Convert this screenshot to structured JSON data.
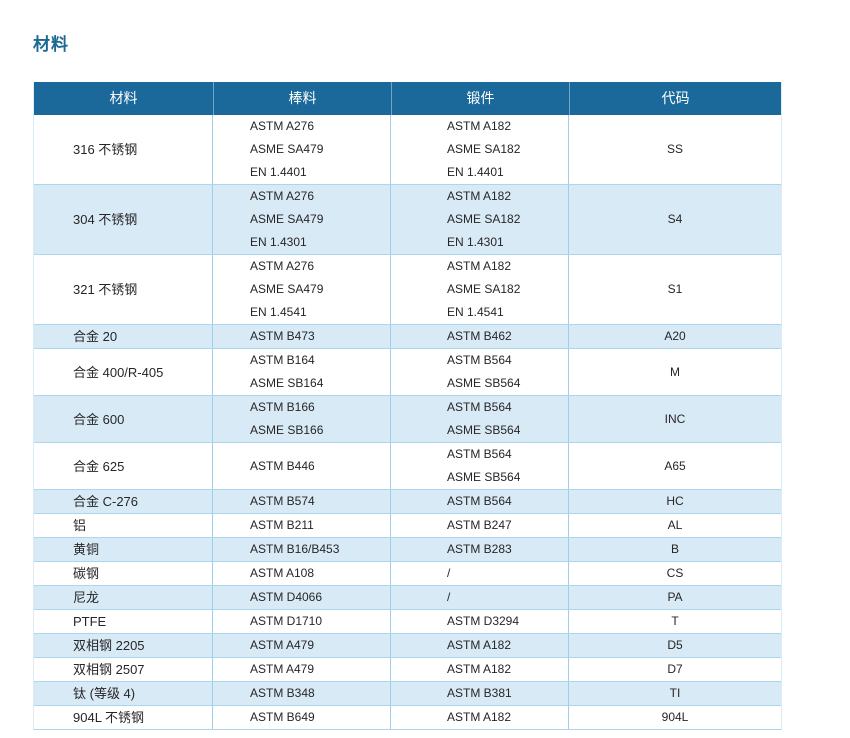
{
  "page": {
    "title": "材料"
  },
  "colors": {
    "title_text": "#1a6a94",
    "header_bg": "#1b689a",
    "header_text": "#ffffff",
    "row_alt_bg": "#d9eaf7",
    "grid_line": "#abd7ee",
    "body_text": "#262626"
  },
  "table": {
    "headers": [
      "材料",
      "棒料",
      "锻件",
      "代码"
    ],
    "rows": [
      {
        "material": "316 不锈钢",
        "bar": [
          "ASTM A276",
          "ASME SA479",
          "EN 1.4401"
        ],
        "forging": [
          "ASTM A182",
          "ASME SA182",
          "EN 1.4401"
        ],
        "code": "SS"
      },
      {
        "material": "304 不锈钢",
        "bar": [
          "ASTM A276",
          "ASME SA479",
          "EN 1.4301"
        ],
        "forging": [
          "ASTM A182",
          "ASME SA182",
          "EN 1.4301"
        ],
        "code": "S4"
      },
      {
        "material": "321 不锈钢",
        "bar": [
          "ASTM A276",
          "ASME SA479",
          "EN 1.4541"
        ],
        "forging": [
          "ASTM A182",
          "ASME SA182",
          "EN 1.4541"
        ],
        "code": "S1"
      },
      {
        "material": "合金 20",
        "bar": [
          "ASTM B473"
        ],
        "forging": [
          "ASTM B462"
        ],
        "code": "A20"
      },
      {
        "material": "合金 400/R-405",
        "bar": [
          "ASTM B164",
          "ASME SB164"
        ],
        "forging": [
          "ASTM B564",
          "ASME SB564"
        ],
        "code": "M"
      },
      {
        "material": "合金 600",
        "bar": [
          "ASTM B166",
          "ASME SB166"
        ],
        "forging": [
          "ASTM B564",
          "ASME SB564"
        ],
        "code": "INC"
      },
      {
        "material": "合金 625",
        "bar": [
          "ASTM B446"
        ],
        "forging": [
          "ASTM B564",
          "ASME SB564"
        ],
        "code": "A65"
      },
      {
        "material": "合金 C-276",
        "bar": [
          "ASTM B574"
        ],
        "forging": [
          "ASTM B564"
        ],
        "code": "HC"
      },
      {
        "material": "铝",
        "bar": [
          "ASTM B211"
        ],
        "forging": [
          "ASTM B247"
        ],
        "code": "AL"
      },
      {
        "material": "黄铜",
        "bar": [
          "ASTM B16/B453"
        ],
        "forging": [
          "ASTM B283"
        ],
        "code": "B"
      },
      {
        "material": "碳钢",
        "bar": [
          "ASTM A108"
        ],
        "forging": [
          "/"
        ],
        "code": "CS"
      },
      {
        "material": "尼龙",
        "bar": [
          "ASTM D4066"
        ],
        "forging": [
          "/"
        ],
        "code": "PA"
      },
      {
        "material": "PTFE",
        "bar": [
          "ASTM D1710"
        ],
        "forging": [
          "ASTM D3294"
        ],
        "code": "T"
      },
      {
        "material": "双相钢 2205",
        "bar": [
          "ASTM A479"
        ],
        "forging": [
          "ASTM A182"
        ],
        "code": "D5"
      },
      {
        "material": "双相钢 2507",
        "bar": [
          "ASTM A479"
        ],
        "forging": [
          "ASTM A182"
        ],
        "code": "D7"
      },
      {
        "material": "钛 (等级 4)",
        "bar": [
          "ASTM B348"
        ],
        "forging": [
          "ASTM B381"
        ],
        "code": "TI"
      },
      {
        "material": "904L 不锈钢",
        "bar": [
          "ASTM B649"
        ],
        "forging": [
          "ASTM A182"
        ],
        "code": "904L"
      }
    ]
  }
}
